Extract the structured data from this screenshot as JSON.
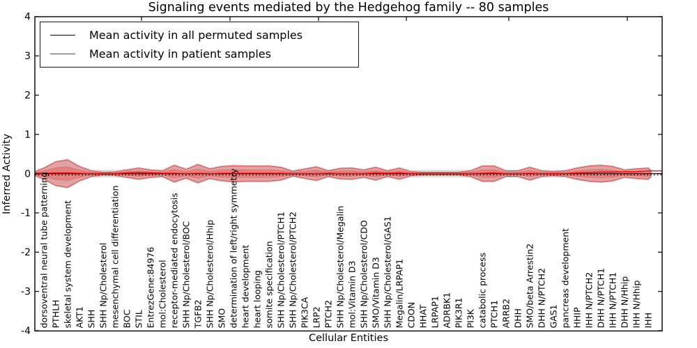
{
  "chart": {
    "title": "Signaling events mediated by the Hedgehog family -- 80 samples",
    "xlabel": "Cellular Entities",
    "ylabel": "Inferred Activity",
    "legend": {
      "entries": [
        {
          "label": "Mean activity in all permuted samples",
          "color": "#000000"
        },
        {
          "label": "Mean activity in patient samples",
          "color": "#ff0000"
        }
      ]
    },
    "y_axis": {
      "ticks": [
        "4",
        "3",
        "2",
        "1",
        "0",
        "-1",
        "-2",
        "-3",
        "-4"
      ],
      "lim": [
        -4,
        4
      ]
    },
    "colors": {
      "frame": "#000000",
      "permuted_line": "#000000",
      "patient_line": "#ff0000",
      "patient_band_fill": "#e85555",
      "patient_band_edge": "#dd3c3c",
      "permuted_band_fill": "#bdbdbd",
      "permuted_band_edge": "#b0b0b0"
    }
  },
  "chart_data": {
    "type": "area",
    "title": "Signaling events mediated by the Hedgehog family -- 80 samples",
    "xlabel": "Cellular Entities",
    "ylabel": "Inferred Activity",
    "ylim": [
      -4,
      4
    ],
    "yticks": [
      4,
      3,
      2,
      1,
      0,
      -1,
      -2,
      -3,
      -4
    ],
    "grid": false,
    "legend_position": "upper left",
    "categories": [
      "dorsoventral neural tube patterning",
      "PTHLH",
      "skeletal system development",
      "AKT1",
      "SHH",
      "SHH Np/Cholesterol",
      "mesenchymal cell differentiation",
      "BOC",
      "STIL",
      "EntrezGene:84976",
      "mol:Cholesterol",
      "receptor-mediated endocytosis",
      "SHH Np/Cholesterol/BOC",
      "TGFB2",
      "SHH Np/Cholesterol/Hhip",
      "SMO",
      "determination of left/right symmetry",
      "heart development",
      "heart looping",
      "somite specification",
      "SHH Np/Cholesterol/PTCH1",
      "SHH Np/Cholesterol/PTCH2",
      "PIK3CA",
      "LRP2",
      "PTCH2",
      "SHH Np/Cholesterol/Megalin",
      "mol:Vitamin D3",
      "SHH Np/Cholesterol/CDO",
      "SMO/Vitamin D3",
      "SHH Np/Cholesterol/GAS1",
      "Megalin/LRPAP1",
      "CDON",
      "HHAT",
      "LRPAP1",
      "ADRBK1",
      "PIK3R1",
      "PI3K",
      "catabolic process",
      "PTCH1",
      "ARRB2",
      "DHH",
      "SMO/beta Arrestin2",
      "DHH N/PTCH2",
      "GAS1",
      "pancreas development",
      "HHIP",
      "IHH N/PTCH2",
      "DHH N/PTCH1",
      "IHH N/PTCH1",
      "DHH N/Hhip",
      "IHH N/Hhip",
      "IHH"
    ],
    "series": [
      {
        "name": "Mean activity in all permuted samples",
        "role": "line",
        "style": "solid",
        "color": "#000000",
        "value": 0
      },
      {
        "name": "Mean activity in patient samples",
        "role": "line",
        "style": "solid",
        "color": "#ff0000",
        "values": [
          0.01,
          0.02,
          0.02,
          0.01,
          0,
          0,
          0,
          0.02,
          0.03,
          0.02,
          0.01,
          0.01,
          0,
          0.01,
          0,
          0.01,
          0.01,
          0.01,
          0.01,
          0.01,
          0.01,
          0,
          0,
          0,
          0.01,
          0,
          0,
          0,
          0.02,
          0.01,
          0.02,
          0,
          0,
          0,
          0,
          0,
          0,
          0.01,
          0.02,
          0,
          0,
          0.01,
          0,
          0,
          0,
          0.02,
          0.03,
          0.04,
          0.04,
          0.05,
          0.05,
          0.07
        ]
      },
      {
        "name": "Permuted samples band half-width",
        "role": "band",
        "color": "#bdbdbd",
        "values": [
          0.165,
          0.325,
          0.375,
          0.205,
          0.095,
          0.085,
          0.085,
          0.115,
          0.165,
          0.115,
          0.095,
          0.235,
          0.135,
          0.255,
          0.145,
          0.205,
          0.225,
          0.215,
          0.215,
          0.215,
          0.185,
          0.085,
          0.14,
          0.195,
          0.095,
          0.155,
          0.165,
          0.115,
          0.185,
          0.095,
          0.165,
          0.085,
          0.085,
          0.085,
          0.085,
          0.085,
          0.095,
          0.215,
          0.215,
          0.095,
          0.095,
          0.185,
          0.095,
          0.085,
          0.095,
          0.165,
          0.215,
          0.235,
          0.205,
          0.115,
          0.145,
          0.165
        ]
      },
      {
        "name": "Patient samples outer band half-width",
        "role": "band",
        "color": "#e85555",
        "values": [
          0.14,
          0.3,
          0.35,
          0.18,
          0.07,
          0.035,
          0.045,
          0.09,
          0.14,
          0.09,
          0.07,
          0.21,
          0.11,
          0.23,
          0.12,
          0.18,
          0.2,
          0.19,
          0.19,
          0.19,
          0.16,
          0.06,
          0.115,
          0.17,
          0.07,
          0.13,
          0.14,
          0.09,
          0.16,
          0.07,
          0.14,
          0.05,
          0.035,
          0.035,
          0.035,
          0.035,
          0.07,
          0.19,
          0.19,
          0.07,
          0.07,
          0.16,
          0.07,
          0.05,
          0.07,
          0.14,
          0.19,
          0.21,
          0.18,
          0.09,
          0.12,
          0.14
        ]
      },
      {
        "name": "Patient samples inner band half-width",
        "role": "band",
        "color": "#e85555",
        "values": [
          0.07,
          0.15,
          0.175,
          0.09,
          0.035,
          0.018,
          0.022,
          0.045,
          0.07,
          0.045,
          0.035,
          0.105,
          0.055,
          0.115,
          0.06,
          0.09,
          0.1,
          0.095,
          0.095,
          0.095,
          0.08,
          0.03,
          0.058,
          0.085,
          0.035,
          0.065,
          0.07,
          0.045,
          0.08,
          0.035,
          0.07,
          0.025,
          0.018,
          0.018,
          0.018,
          0.018,
          0.035,
          0.095,
          0.095,
          0.035,
          0.035,
          0.08,
          0.035,
          0.025,
          0.035,
          0.07,
          0.095,
          0.105,
          0.09,
          0.045,
          0.06,
          0.07
        ]
      }
    ],
    "zero_reference_line": {
      "style": "dotted",
      "color": "#000000",
      "value": -0.03
    }
  }
}
